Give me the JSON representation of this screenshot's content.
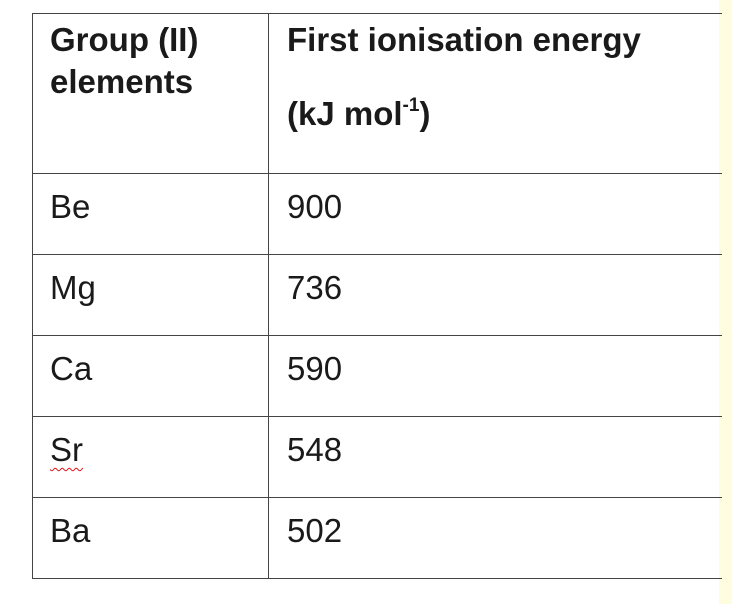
{
  "table": {
    "header": {
      "col1": [
        "Group (II)",
        "elements"
      ],
      "col2": {
        "line1": "First ionisation energy",
        "unit_prefix": "(kJ mol",
        "unit_superscript": "-1",
        "unit_suffix": ")"
      }
    },
    "rows": [
      {
        "element": "Be",
        "energy": "900"
      },
      {
        "element": "Mg",
        "energy": "736"
      },
      {
        "element": "Ca",
        "energy": "590"
      },
      {
        "element": "Sr",
        "energy": "548"
      },
      {
        "element": "Ba",
        "energy": "502"
      }
    ]
  },
  "colors": {
    "border": "#444444",
    "text": "#1a1a1a",
    "right_edge": "#fffde0",
    "spellcheck": "#dd1111"
  }
}
